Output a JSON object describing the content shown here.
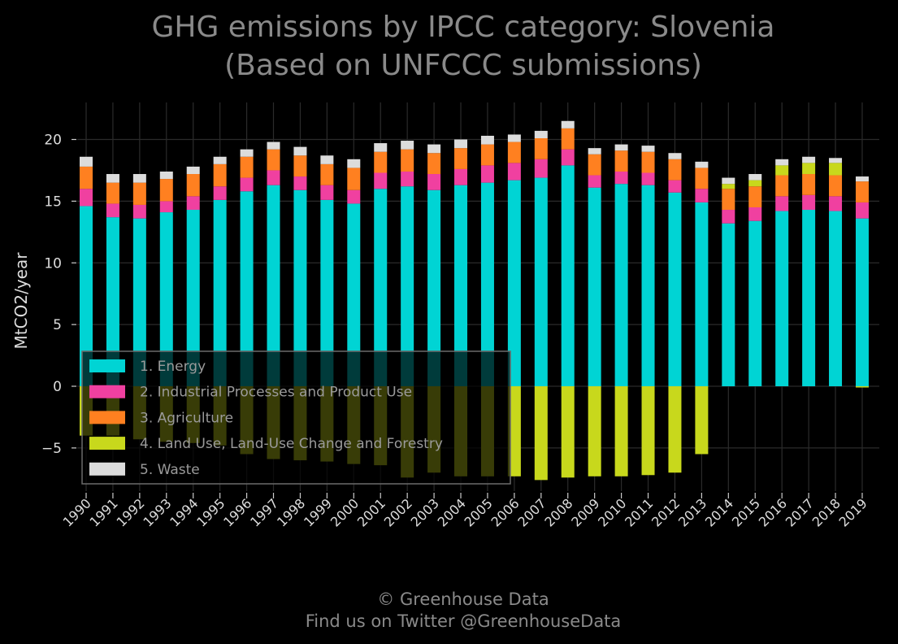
{
  "chart_data": {
    "type": "bar",
    "stacked": true,
    "title": "GHG emissions by IPCC category: Slovenia",
    "subtitle": "(Based on UNFCCC submissions)",
    "xlabel": "",
    "ylabel": "MtCO2/year",
    "ylim": [
      -8.5,
      23
    ],
    "yticks": [
      -5,
      0,
      5,
      10,
      15,
      20
    ],
    "ytick_labels": [
      "−5",
      "0",
      "5",
      "10",
      "15",
      "20"
    ],
    "grid": true,
    "legend_position": "lower-left",
    "categories": [
      "1990",
      "1991",
      "1992",
      "1993",
      "1994",
      "1995",
      "1996",
      "1997",
      "1998",
      "1999",
      "2000",
      "2001",
      "2002",
      "2003",
      "2004",
      "2005",
      "2006",
      "2007",
      "2008",
      "2009",
      "2010",
      "2011",
      "2012",
      "2013",
      "2014",
      "2015",
      "2016",
      "2017",
      "2018",
      "2019"
    ],
    "series": [
      {
        "name": "1. Energy",
        "color": "#00d4d4",
        "values": [
          14.6,
          13.7,
          13.6,
          14.1,
          14.3,
          15.1,
          15.8,
          16.3,
          15.9,
          15.1,
          14.8,
          16.0,
          16.2,
          15.9,
          16.3,
          16.5,
          16.7,
          16.9,
          17.9,
          16.1,
          16.4,
          16.3,
          15.7,
          14.9,
          13.2,
          13.4,
          14.2,
          14.3,
          14.2,
          13.6
        ]
      },
      {
        "name": "2. Industrial Processes and Product Use",
        "color": "#f040a0",
        "values": [
          1.4,
          1.1,
          1.1,
          0.9,
          1.1,
          1.1,
          1.1,
          1.2,
          1.1,
          1.2,
          1.1,
          1.3,
          1.2,
          1.3,
          1.3,
          1.4,
          1.4,
          1.5,
          1.3,
          1.0,
          1.0,
          1.0,
          1.0,
          1.1,
          1.1,
          1.1,
          1.2,
          1.2,
          1.2,
          1.3
        ]
      },
      {
        "name": "3. Agriculture",
        "color": "#ff8020",
        "values": [
          1.8,
          1.7,
          1.8,
          1.8,
          1.8,
          1.8,
          1.7,
          1.7,
          1.7,
          1.7,
          1.8,
          1.7,
          1.8,
          1.7,
          1.7,
          1.7,
          1.7,
          1.7,
          1.7,
          1.7,
          1.7,
          1.7,
          1.7,
          1.7,
          1.7,
          1.7,
          1.7,
          1.7,
          1.7,
          1.7
        ]
      },
      {
        "name": "4. Land Use, Land-Use Change and Forestry",
        "color": "#c8d81c",
        "values": [
          -4.0,
          -4.0,
          -4.3,
          -4.5,
          -4.6,
          -4.8,
          -5.5,
          -5.9,
          -6.0,
          -6.1,
          -6.3,
          -6.4,
          -7.4,
          -7.0,
          -7.3,
          -7.3,
          -7.3,
          -7.6,
          -7.4,
          -7.3,
          -7.3,
          -7.2,
          -7.0,
          -5.5,
          0.4,
          0.5,
          0.8,
          0.9,
          1.0,
          -0.1
        ]
      },
      {
        "name": "5. Waste",
        "color": "#dcdcdc",
        "values": [
          0.8,
          0.7,
          0.7,
          0.6,
          0.6,
          0.6,
          0.6,
          0.6,
          0.7,
          0.7,
          0.7,
          0.7,
          0.7,
          0.7,
          0.7,
          0.7,
          0.6,
          0.6,
          0.6,
          0.5,
          0.5,
          0.5,
          0.5,
          0.5,
          0.5,
          0.5,
          0.5,
          0.5,
          0.4,
          0.4
        ]
      }
    ],
    "footer": [
      "© Greenhouse Data",
      "Find us on Twitter @GreenhouseData"
    ]
  }
}
